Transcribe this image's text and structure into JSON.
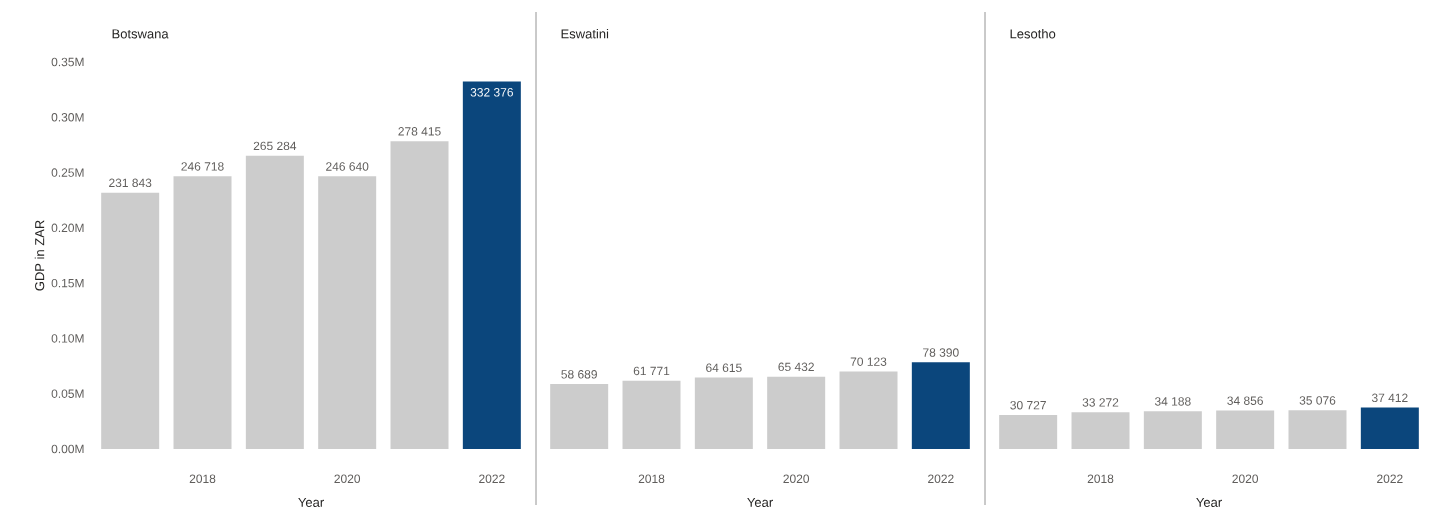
{
  "chart_data": [
    {
      "type": "bar",
      "title": "Botswana",
      "xlabel": "Year",
      "ylabel": "GDP in ZAR",
      "categories": [
        null,
        "2018",
        null,
        "2020",
        null,
        "2022"
      ],
      "ylim": [
        0,
        350000
      ],
      "yticks": [
        {
          "value": 0,
          "label": "0.00M"
        },
        {
          "value": 50000,
          "label": "0.05M"
        },
        {
          "value": 100000,
          "label": "0.10M"
        },
        {
          "value": 150000,
          "label": "0.15M"
        },
        {
          "value": 200000,
          "label": "0.20M"
        },
        {
          "value": 250000,
          "label": "0.25M"
        },
        {
          "value": 300000,
          "label": "0.30M"
        },
        {
          "value": 350000,
          "label": "0.35M"
        }
      ],
      "values": [
        231843,
        246718,
        265284,
        246640,
        278415,
        332376
      ],
      "value_labels": [
        "231 843",
        "246 718",
        "265 284",
        "246 640",
        "278 415",
        "332 376"
      ],
      "colors": [
        "#cccccc",
        "#cccccc",
        "#cccccc",
        "#cccccc",
        "#cccccc",
        "#0b467c"
      ]
    },
    {
      "type": "bar",
      "title": "Eswatini",
      "xlabel": "Year",
      "categories": [
        null,
        "2018",
        null,
        "2020",
        null,
        "2022"
      ],
      "ylim": [
        0,
        350000
      ],
      "tick_labels": "x",
      "values": [
        58689,
        61771,
        64615,
        65432,
        70123,
        78390
      ],
      "value_labels": [
        "58 689",
        "61 771",
        "64 615",
        "65 432",
        "70 123",
        "78 390"
      ],
      "colors": [
        "#cccccc",
        "#cccccc",
        "#cccccc",
        "#cccccc",
        "#cccccc",
        "#0b467c"
      ]
    },
    {
      "type": "bar",
      "title": "Lesotho",
      "xlabel": "Year",
      "categories": [
        null,
        "2018",
        null,
        "2020",
        null,
        "2022"
      ],
      "ylim": [
        0,
        350000
      ],
      "tick_labels": "x",
      "values": [
        30727,
        33272,
        34188,
        34856,
        35076,
        37412
      ],
      "value_labels": [
        "30 727",
        "33 272",
        "34 188",
        "34 856",
        "35 076",
        "37 412"
      ],
      "colors": [
        "#cccccc",
        "#cccccc",
        "#cccccc",
        "#cccccc",
        "#cccccc",
        "#0b467c"
      ]
    }
  ]
}
